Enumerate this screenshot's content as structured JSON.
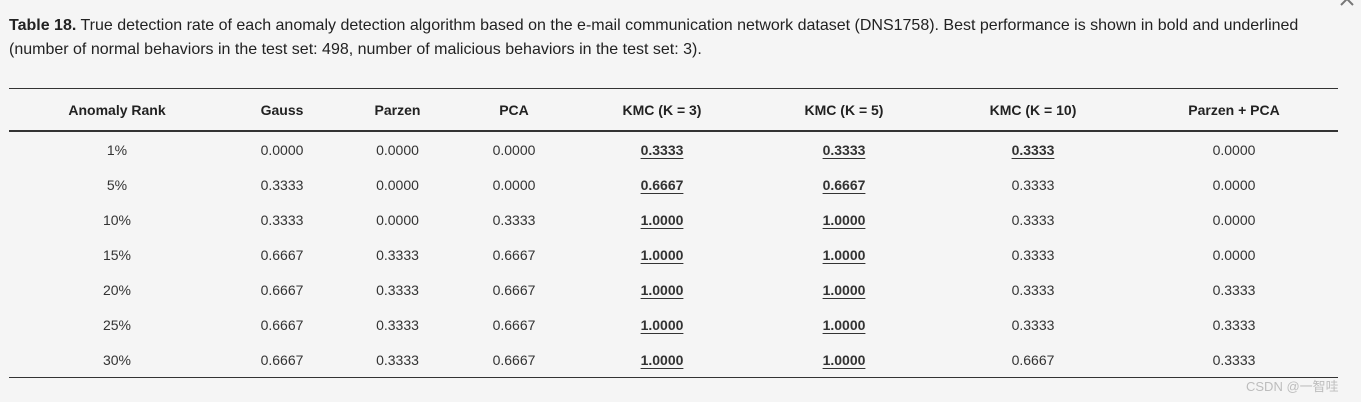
{
  "caption": {
    "label": "Table 18.",
    "text": " True detection rate of each anomaly detection algorithm based on the e-mail communication network dataset (DNS1758). Best performance is shown in bold and underlined (number of normal behaviors in the test set: 498, number of malicious behaviors in the test set: 3)."
  },
  "table": {
    "headers": [
      "Anomaly Rank",
      "Gauss",
      "Parzen",
      "PCA",
      "KMC (K = 3)",
      "KMC (K = 5)",
      "KMC (K = 10)",
      "Parzen + PCA"
    ],
    "rows": [
      {
        "cells": [
          "1%",
          "0.0000",
          "0.0000",
          "0.0000",
          "0.3333",
          "0.3333",
          "0.3333",
          "0.0000"
        ],
        "best": [
          4,
          5,
          6
        ]
      },
      {
        "cells": [
          "5%",
          "0.3333",
          "0.0000",
          "0.0000",
          "0.6667",
          "0.6667",
          "0.3333",
          "0.0000"
        ],
        "best": [
          4,
          5
        ]
      },
      {
        "cells": [
          "10%",
          "0.3333",
          "0.0000",
          "0.3333",
          "1.0000",
          "1.0000",
          "0.3333",
          "0.0000"
        ],
        "best": [
          4,
          5
        ]
      },
      {
        "cells": [
          "15%",
          "0.6667",
          "0.3333",
          "0.6667",
          "1.0000",
          "1.0000",
          "0.3333",
          "0.0000"
        ],
        "best": [
          4,
          5
        ]
      },
      {
        "cells": [
          "20%",
          "0.6667",
          "0.3333",
          "0.6667",
          "1.0000",
          "1.0000",
          "0.3333",
          "0.3333"
        ],
        "best": [
          4,
          5
        ]
      },
      {
        "cells": [
          "25%",
          "0.6667",
          "0.3333",
          "0.6667",
          "1.0000",
          "1.0000",
          "0.3333",
          "0.3333"
        ],
        "best": [
          4,
          5
        ]
      },
      {
        "cells": [
          "30%",
          "0.6667",
          "0.3333",
          "0.6667",
          "1.0000",
          "1.0000",
          "0.6667",
          "0.3333"
        ],
        "best": [
          4,
          5
        ]
      }
    ]
  },
  "watermark": "CSDN @一智哇",
  "icons": {
    "corner": "chevron-up-icon"
  }
}
